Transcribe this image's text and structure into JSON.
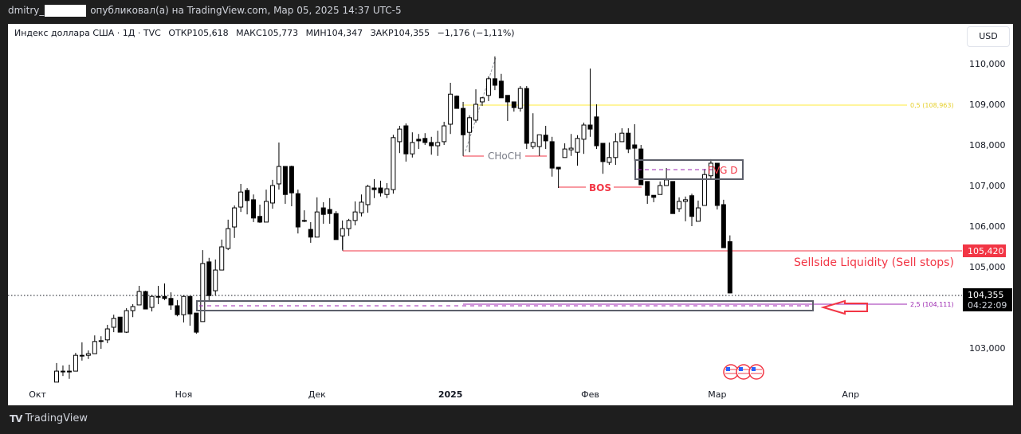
{
  "header": {
    "user_prefix": "dmitry_",
    "published_text": "опубликовал(а) на TradingView.com, Мар 05, 2025 14:37 UTC-5"
  },
  "legend": {
    "symbol": "Индекс доллара США · 1Д · TVC",
    "open": "ОТКР105,618",
    "high": "МАКС105,773",
    "low": "МИН104,347",
    "close": "ЗАКР104,355",
    "change": "−1,176 (−1,11%)"
  },
  "currency_button": "USD",
  "price_tags": {
    "liquidity": "105,420",
    "last": "104,355",
    "countdown": "04:22:09"
  },
  "annotations": {
    "choch": "CHoCH",
    "bos": "BOS",
    "fvg": "FVG D",
    "sellside": "Sellside Liquidity (Sell stops)",
    "fib_05": "0,5 (108,963)",
    "fib_25": "2,5 (104,111)"
  },
  "brand": "TradingView",
  "colors": {
    "bull": "#ffffff",
    "bear": "#000000",
    "red": "#f23645",
    "purple": "#9c27b0",
    "yellow": "#ffeb3b",
    "box": "#5d606b"
  },
  "chart_data": {
    "type": "candlestick",
    "title": "Индекс доллара США · 1Д · TVC",
    "ylim": [
      102.2,
      110.9
    ],
    "y_ticks": [
      "110,000",
      "109,000",
      "108,000",
      "107,000",
      "106,000",
      "105,000",
      "103,000"
    ],
    "y_tick_values": [
      110,
      109,
      108,
      107,
      106,
      105,
      103
    ],
    "x_ticks": [
      "Окт",
      "Ноя",
      "Дек",
      "2025",
      "Фев",
      "Мар",
      "Апр"
    ],
    "x_tick_index": [
      -3,
      20,
      41,
      62,
      84,
      104,
      125
    ],
    "ohlc_fields": [
      "open",
      "high",
      "low",
      "close"
    ],
    "candles": [
      [
        102.16,
        102.63,
        102.16,
        102.43
      ],
      [
        102.43,
        102.57,
        102.31,
        102.43
      ],
      [
        102.43,
        102.59,
        102.24,
        102.43
      ],
      [
        102.43,
        102.88,
        102.43,
        102.82
      ],
      [
        102.82,
        103.14,
        102.69,
        102.82
      ],
      [
        102.82,
        102.94,
        102.73,
        102.86
      ],
      [
        102.86,
        103.31,
        102.86,
        103.16
      ],
      [
        103.18,
        103.29,
        102.98,
        103.18
      ],
      [
        103.2,
        103.57,
        103.12,
        103.47
      ],
      [
        103.51,
        103.82,
        103.39,
        103.73
      ],
      [
        103.76,
        103.76,
        103.39,
        103.39
      ],
      [
        103.39,
        103.98,
        103.37,
        103.92
      ],
      [
        103.92,
        104.08,
        103.76,
        104.02
      ],
      [
        104.06,
        104.53,
        104.06,
        104.39
      ],
      [
        104.39,
        104.41,
        103.96,
        103.96
      ],
      [
        104.0,
        104.31,
        103.9,
        104.27
      ],
      [
        104.27,
        104.53,
        104.08,
        104.27
      ],
      [
        104.27,
        104.59,
        104.18,
        104.22
      ],
      [
        104.22,
        104.37,
        103.94,
        104.06
      ],
      [
        104.04,
        104.18,
        103.78,
        103.82
      ],
      [
        103.82,
        104.29,
        103.63,
        104.27
      ],
      [
        104.27,
        104.27,
        103.55,
        103.84
      ],
      [
        103.86,
        103.86,
        103.35,
        103.39
      ],
      [
        103.65,
        105.41,
        103.65,
        105.08
      ],
      [
        105.12,
        105.22,
        104.16,
        104.29
      ],
      [
        104.41,
        105.18,
        104.29,
        104.92
      ],
      [
        104.92,
        105.67,
        104.92,
        105.49
      ],
      [
        105.45,
        106.16,
        105.41,
        105.94
      ],
      [
        105.98,
        106.51,
        105.71,
        106.45
      ],
      [
        106.47,
        107.04,
        106.35,
        106.84
      ],
      [
        106.88,
        106.94,
        106.29,
        106.63
      ],
      [
        106.65,
        106.78,
        106.1,
        106.2
      ],
      [
        106.24,
        106.53,
        106.08,
        106.1
      ],
      [
        106.1,
        106.9,
        106.1,
        106.61
      ],
      [
        106.57,
        107.14,
        106.43,
        107.0
      ],
      [
        107.04,
        108.06,
        106.9,
        107.47
      ],
      [
        107.47,
        107.47,
        106.55,
        106.78
      ],
      [
        107.47,
        107.49,
        106.49,
        106.82
      ],
      [
        106.8,
        106.9,
        105.82,
        105.98
      ],
      [
        106.14,
        106.39,
        106.1,
        106.14
      ],
      [
        105.92,
        106.1,
        105.59,
        105.73
      ],
      [
        105.73,
        106.71,
        105.73,
        106.35
      ],
      [
        106.45,
        106.59,
        106.06,
        106.29
      ],
      [
        106.41,
        106.69,
        106.06,
        106.31
      ],
      [
        106.31,
        106.37,
        105.67,
        105.67
      ],
      [
        105.76,
        106.14,
        105.42,
        105.94
      ],
      [
        105.94,
        106.18,
        105.76,
        106.14
      ],
      [
        106.14,
        106.61,
        106.02,
        106.35
      ],
      [
        106.33,
        106.78,
        106.24,
        106.59
      ],
      [
        106.53,
        107.02,
        106.33,
        106.98
      ],
      [
        106.94,
        107.16,
        106.69,
        106.9
      ],
      [
        106.94,
        107.12,
        106.73,
        106.82
      ],
      [
        106.78,
        107.06,
        106.69,
        106.92
      ],
      [
        106.9,
        108.25,
        106.8,
        108.18
      ],
      [
        108.08,
        108.47,
        107.8,
        108.39
      ],
      [
        108.47,
        108.53,
        107.59,
        107.78
      ],
      [
        107.78,
        108.31,
        107.69,
        108.06
      ],
      [
        108.14,
        108.27,
        107.9,
        108.1
      ],
      [
        108.16,
        108.29,
        108.0,
        108.06
      ],
      [
        108.06,
        108.2,
        107.76,
        107.98
      ],
      [
        107.98,
        108.35,
        107.73,
        108.06
      ],
      [
        108.08,
        108.57,
        108.0,
        108.47
      ],
      [
        108.51,
        109.53,
        108.27,
        109.25
      ],
      [
        109.2,
        109.22,
        108.9,
        108.9
      ],
      [
        108.9,
        109.06,
        107.73,
        108.25
      ],
      [
        108.31,
        108.73,
        107.82,
        108.67
      ],
      [
        108.61,
        109.37,
        108.55,
        109.0
      ],
      [
        109.06,
        109.18,
        108.96,
        109.16
      ],
      [
        109.22,
        109.69,
        109.08,
        109.63
      ],
      [
        109.63,
        110.18,
        109.35,
        109.47
      ],
      [
        109.57,
        109.75,
        109.16,
        109.16
      ],
      [
        109.22,
        109.22,
        108.59,
        109.06
      ],
      [
        109.06,
        109.06,
        108.82,
        108.92
      ],
      [
        108.9,
        109.45,
        108.82,
        109.39
      ],
      [
        109.39,
        109.45,
        107.9,
        108.04
      ],
      [
        107.96,
        108.78,
        107.9,
        108.06
      ],
      [
        107.96,
        108.25,
        107.73,
        108.25
      ],
      [
        108.24,
        108.47,
        107.9,
        108.1
      ],
      [
        108.08,
        108.2,
        107.22,
        107.43
      ],
      [
        107.45,
        107.45,
        106.94,
        107.41
      ],
      [
        107.69,
        108.04,
        107.69,
        107.9
      ],
      [
        107.88,
        108.27,
        107.73,
        107.92
      ],
      [
        107.82,
        108.24,
        107.49,
        108.16
      ],
      [
        108.14,
        108.55,
        107.78,
        108.49
      ],
      [
        108.49,
        109.88,
        108.2,
        108.39
      ],
      [
        108.69,
        109.0,
        107.9,
        107.98
      ],
      [
        108.04,
        108.04,
        107.29,
        107.59
      ],
      [
        107.57,
        108.06,
        107.51,
        107.69
      ],
      [
        107.69,
        108.29,
        107.51,
        108.08
      ],
      [
        108.08,
        108.41,
        108.08,
        108.29
      ],
      [
        108.29,
        108.41,
        107.8,
        107.9
      ],
      [
        108.0,
        108.51,
        107.61,
        107.92
      ],
      [
        107.9,
        108.0,
        107.02,
        107.02
      ],
      [
        107.1,
        107.1,
        106.55,
        106.76
      ],
      [
        106.76,
        106.76,
        106.59,
        106.71
      ],
      [
        106.78,
        107.1,
        106.78,
        107.0
      ],
      [
        107.0,
        107.43,
        107.0,
        107.14
      ],
      [
        107.1,
        107.1,
        106.31,
        106.31
      ],
      [
        106.43,
        106.71,
        106.35,
        106.61
      ],
      [
        106.61,
        106.73,
        106.12,
        106.65
      ],
      [
        106.75,
        106.8,
        106.0,
        106.24
      ],
      [
        106.12,
        106.63,
        106.12,
        106.45
      ],
      [
        106.51,
        107.41,
        106.51,
        107.27
      ],
      [
        107.24,
        107.65,
        107.16,
        107.55
      ],
      [
        107.55,
        107.55,
        106.41,
        106.51
      ],
      [
        106.53,
        106.65,
        105.47,
        105.47
      ],
      [
        105.618,
        105.773,
        104.347,
        104.355
      ]
    ],
    "levels": {
      "fib_05": 108.963,
      "fib_25": 104.111,
      "sellside_liquidity": 105.42,
      "last_price": 104.355
    }
  }
}
